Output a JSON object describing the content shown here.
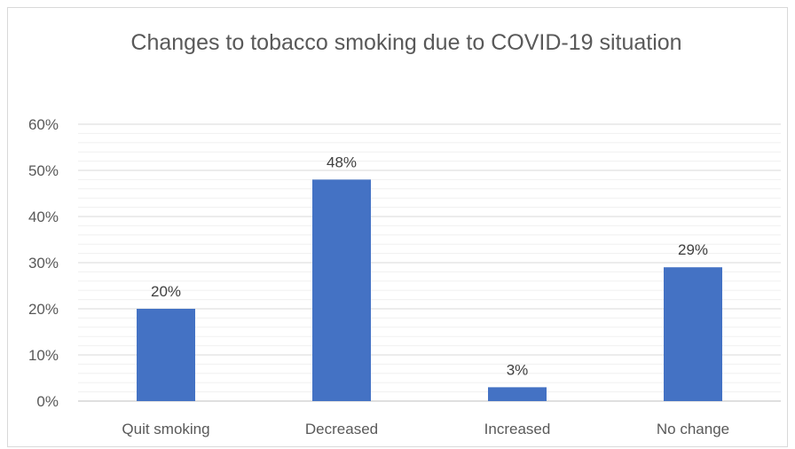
{
  "chart_data": {
    "type": "bar",
    "title": "Changes to tobacco smoking due to COVID-19 situation",
    "xlabel": "",
    "ylabel": "",
    "categories": [
      "Quit smoking",
      "Decreased",
      "Increased",
      "No change"
    ],
    "values": [
      0.2,
      0.48,
      0.03,
      0.29
    ],
    "data_labels": [
      "20%",
      "48%",
      "3%",
      "29%"
    ],
    "ylim": [
      0,
      0.6
    ],
    "y_ticks": [
      0,
      0.1,
      0.2,
      0.3,
      0.4,
      0.5,
      0.6
    ],
    "y_tick_labels": [
      "0%",
      "10%",
      "20%",
      "30%",
      "40%",
      "50%",
      "60%"
    ],
    "grid": "major and minor horizontal",
    "legend": "none",
    "bar_color": "#4472C4"
  }
}
